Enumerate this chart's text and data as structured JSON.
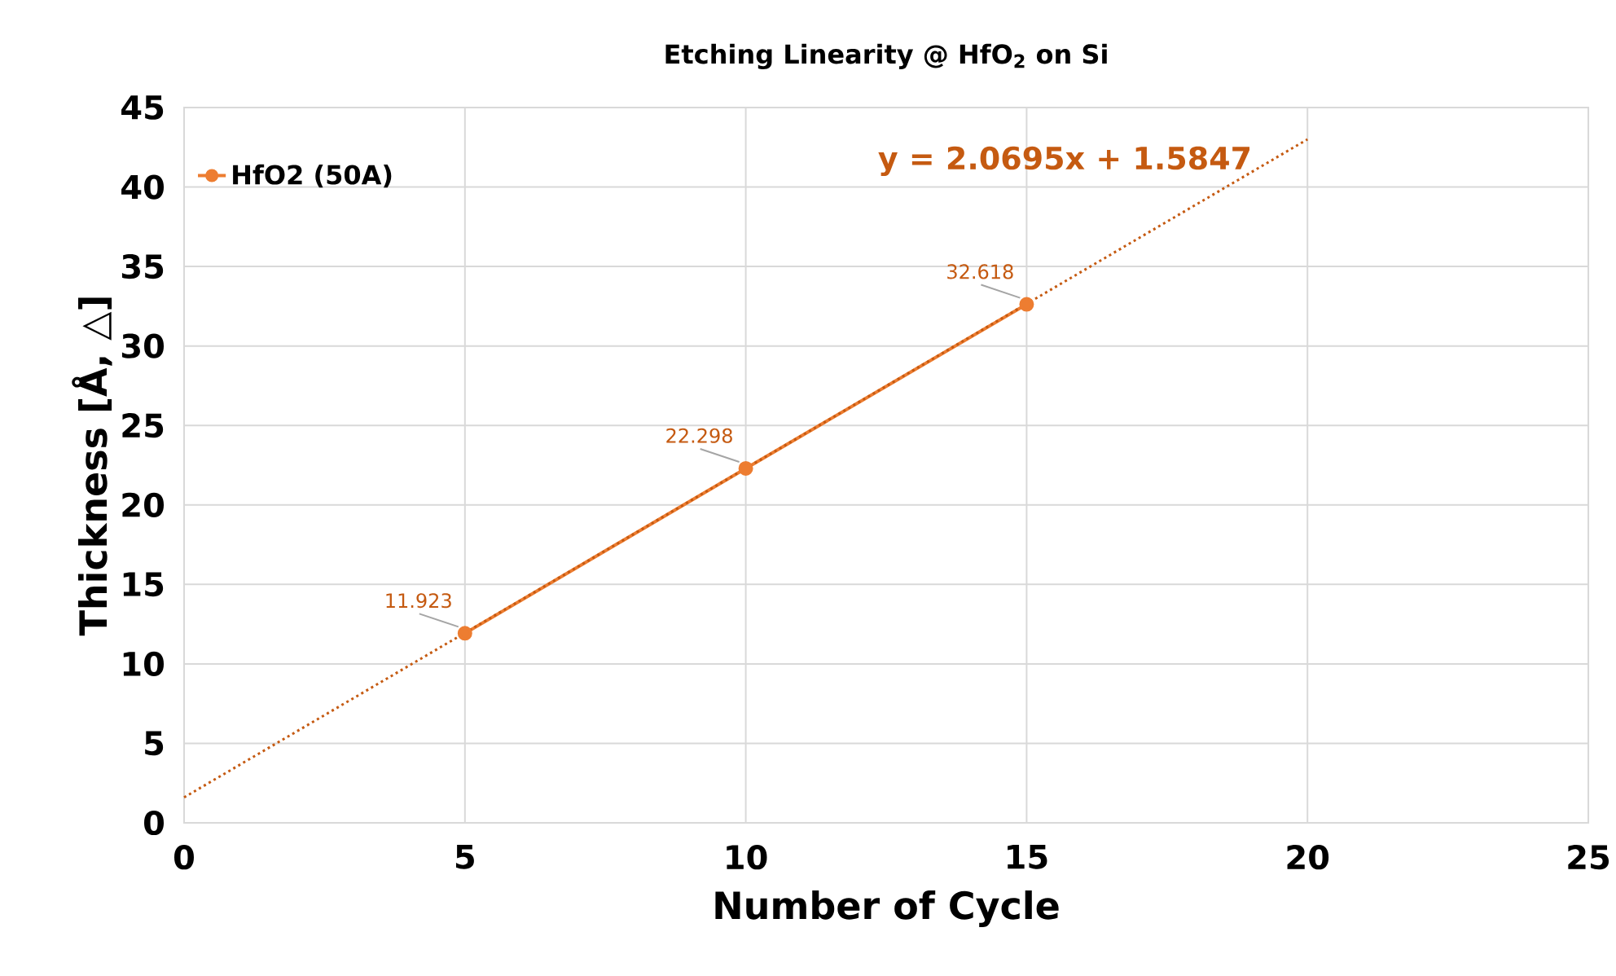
{
  "chart_data": {
    "type": "line",
    "title": "Etching Linearity @ HfO$_{2}$ on Si",
    "xlabel": "Number of Cycle",
    "ylabel": "Thickness [Å, △]",
    "x": [
      5,
      10,
      15
    ],
    "series": [
      {
        "name": "HfO2 (50A)",
        "color": "#ed7d31",
        "values": [
          11.923,
          22.298,
          32.618
        ],
        "value_labels": [
          "11.923",
          "22.298",
          "32.618"
        ],
        "marker": "circle",
        "line_style": "solid"
      },
      {
        "type": "line",
        "color": "#c55a11",
        "x": [
          0,
          20
        ],
        "values": [
          1.6,
          43.0
        ],
        "marker": "none",
        "line_style": "dotted"
      }
    ],
    "annotations": [
      "y = 2.0695x + 1.5847"
    ],
    "xlim": [
      0,
      25
    ],
    "xticks": [
      0,
      5,
      10,
      15,
      20,
      25
    ],
    "ylim": [
      0,
      45
    ],
    "yticks": [
      0,
      5,
      10,
      15,
      20,
      25,
      30,
      35,
      40,
      45
    ],
    "grid": true,
    "legend": "top left"
  }
}
